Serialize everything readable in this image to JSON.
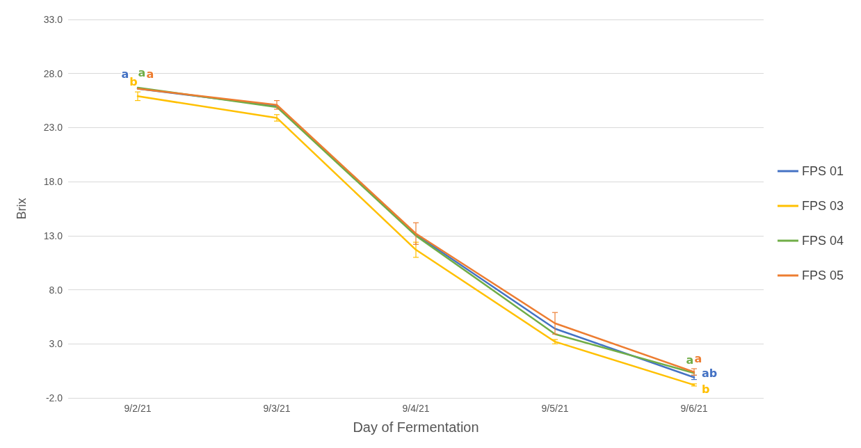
{
  "chart_data": {
    "type": "line",
    "xlabel": "Day of Fermentation",
    "ylabel": "Brix",
    "categories": [
      "9/2/21",
      "9/3/21",
      "9/4/21",
      "9/5/21",
      "9/6/21"
    ],
    "ylim": [
      -2,
      33
    ],
    "yticks": [
      {
        "value": -2,
        "label": "-2.0"
      },
      {
        "value": 3,
        "label": "3.0"
      },
      {
        "value": 8,
        "label": "8.0"
      },
      {
        "value": 13,
        "label": "13.0"
      },
      {
        "value": 18,
        "label": "18.0"
      },
      {
        "value": 23,
        "label": "23.0"
      },
      {
        "value": 28,
        "label": "28.0"
      },
      {
        "value": 33,
        "label": "33.0"
      }
    ],
    "grid": "y",
    "legend": "right",
    "marker": "none",
    "line_style": "solid",
    "series": [
      {
        "name": "FPS 01",
        "color": "#4472c4",
        "values": [
          26.6,
          25.0,
          13.1,
          4.4,
          -0.1
        ],
        "errors": [
          null,
          null,
          null,
          null,
          0.2
        ],
        "value_labels": [
          "a",
          null,
          null,
          null,
          "ab"
        ]
      },
      {
        "name": "FPS 03",
        "color": "#ffc000",
        "values": [
          25.9,
          23.9,
          11.7,
          3.2,
          -0.8
        ],
        "errors": [
          0.4,
          0.3,
          0.7,
          0.2,
          0.1
        ],
        "value_labels": [
          "b",
          null,
          null,
          null,
          "b"
        ]
      },
      {
        "name": "FPS 04",
        "color": "#70ad47",
        "values": [
          26.7,
          24.9,
          13.0,
          3.9,
          0.3
        ],
        "value_labels": [
          "a",
          null,
          null,
          null,
          "a"
        ]
      },
      {
        "name": "FPS 05",
        "color": "#ed7d31",
        "values": [
          26.6,
          25.1,
          13.2,
          4.9,
          0.4
        ],
        "errors": [
          null,
          0.4,
          1.0,
          1.0,
          0.3
        ],
        "value_labels": [
          "a",
          null,
          null,
          null,
          "a"
        ]
      }
    ]
  }
}
